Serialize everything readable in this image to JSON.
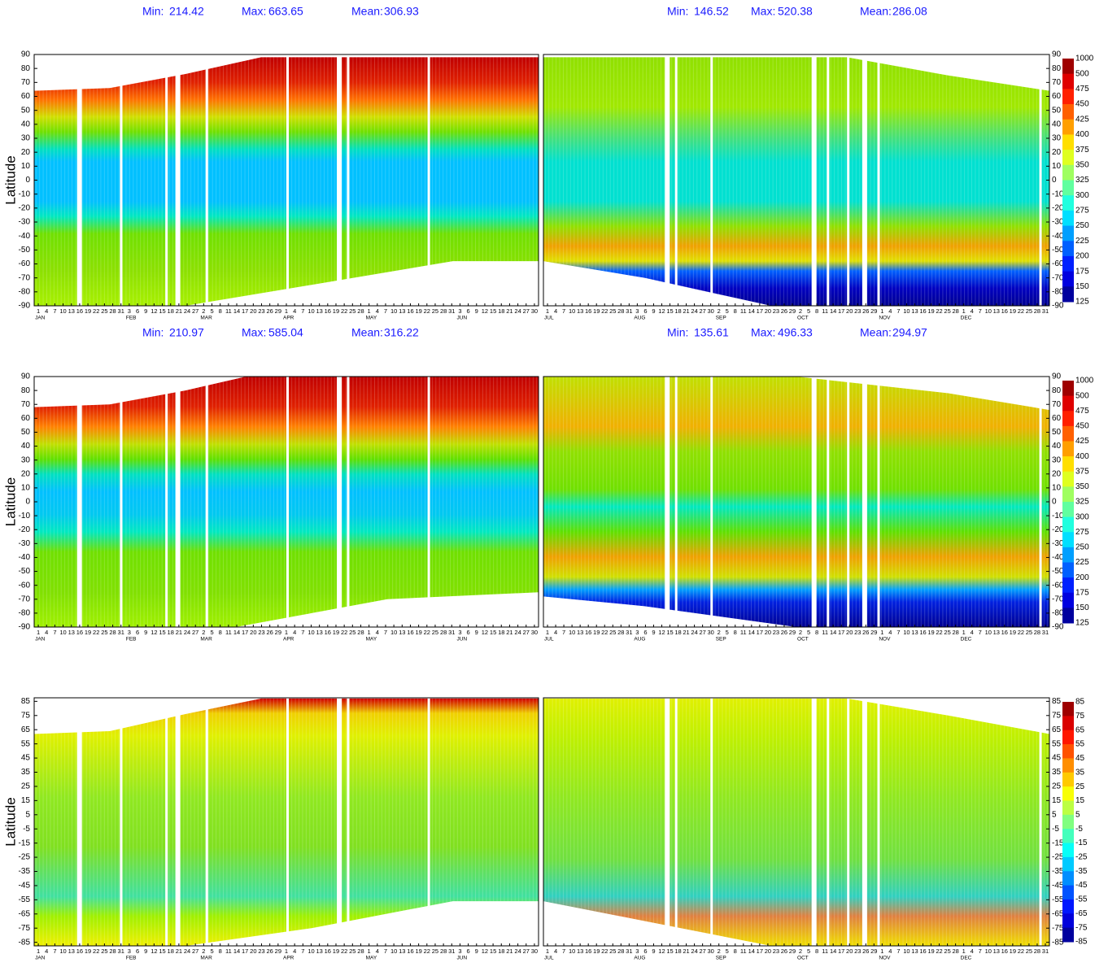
{
  "y_axis_label": "Latitude",
  "days_first_half": [
    1,
    4,
    7,
    10,
    13,
    16,
    19,
    22,
    25,
    28,
    31,
    3,
    6,
    9,
    12,
    15,
    18,
    21,
    24,
    27,
    2,
    5,
    8,
    11,
    14,
    17,
    20,
    23,
    26,
    29,
    1,
    4,
    7,
    10,
    13,
    16,
    19,
    22,
    25,
    28,
    1,
    4,
    7,
    10,
    13,
    16,
    19,
    22,
    25,
    28,
    31,
    3,
    6,
    9,
    12,
    15,
    18,
    21,
    24,
    27,
    30
  ],
  "days_second_half": [
    1,
    4,
    7,
    10,
    13,
    16,
    19,
    22,
    25,
    28,
    31,
    3,
    6,
    9,
    12,
    15,
    18,
    21,
    24,
    27,
    30,
    2,
    5,
    8,
    11,
    14,
    17,
    20,
    23,
    26,
    29,
    2,
    5,
    8,
    11,
    14,
    17,
    20,
    23,
    26,
    29,
    1,
    4,
    7,
    10,
    13,
    16,
    19,
    22,
    25,
    28,
    1,
    4,
    7,
    10,
    13,
    16,
    19,
    22,
    25,
    28,
    31
  ],
  "months_first_half": [
    "JAN",
    "FEB",
    "MAR",
    "APR",
    "MAY",
    "JUN"
  ],
  "months_second_half": [
    "JUL",
    "AUG",
    "SEP",
    "OCT",
    "NOV",
    "DEC"
  ],
  "highlight_color": "#ff0000",
  "highlight_first_half": [
    3,
    10,
    17,
    24,
    31,
    38,
    45,
    52,
    59
  ],
  "highlight_second_half": [
    1,
    8,
    15,
    22,
    29,
    36,
    43,
    50,
    57
  ],
  "rows": [
    {
      "stats_left": [
        {
          "label": "Min:",
          "value": 214.42
        },
        {
          "label": "Max:",
          "value": 663.65
        },
        {
          "label": "Mean:",
          "value": 306.93
        }
      ],
      "stats_right": [
        {
          "label": "Min:",
          "value": 146.52
        },
        {
          "label": "Max:",
          "value": 520.38
        },
        {
          "label": "Mean:",
          "value": 286.08
        }
      ],
      "ylim": [
        -90,
        90
      ],
      "yticks": [
        90,
        80,
        70,
        60,
        50,
        40,
        30,
        20,
        10,
        0,
        -10,
        -20,
        -30,
        -40,
        -50,
        -60,
        -70,
        -80,
        -90
      ],
      "colorbar": [
        1000,
        500,
        475,
        450,
        425,
        400,
        375,
        350,
        325,
        300,
        275,
        250,
        225,
        200,
        175,
        150,
        125
      ]
    },
    {
      "stats_left": [
        {
          "label": "Min:",
          "value": 210.97
        },
        {
          "label": "Max:",
          "value": 585.04
        },
        {
          "label": "Mean:",
          "value": 316.22
        }
      ],
      "stats_right": [
        {
          "label": "Min:",
          "value": 135.61
        },
        {
          "label": "Max:",
          "value": 496.33
        },
        {
          "label": "Mean:",
          "value": 294.97
        }
      ],
      "ylim": [
        -90,
        90
      ],
      "yticks": [
        90,
        80,
        70,
        60,
        50,
        40,
        30,
        20,
        10,
        0,
        -10,
        -20,
        -30,
        -40,
        -50,
        -60,
        -70,
        -80,
        -90
      ],
      "colorbar": [
        1000,
        500,
        475,
        450,
        425,
        400,
        375,
        350,
        325,
        300,
        275,
        250,
        225,
        200,
        175,
        150,
        125
      ]
    },
    {
      "ylim": [
        -87.5,
        87.5
      ],
      "yticks": [
        85,
        75,
        65,
        55,
        45,
        35,
        25,
        15,
        5,
        -5,
        -15,
        -25,
        -35,
        -45,
        -55,
        -65,
        -75,
        -85
      ],
      "colorbar": [
        85,
        75,
        65,
        55,
        45,
        35,
        25,
        15,
        5,
        -5,
        -15,
        -25,
        -35,
        -45,
        -55,
        -65,
        -75,
        -85
      ]
    }
  ]
}
